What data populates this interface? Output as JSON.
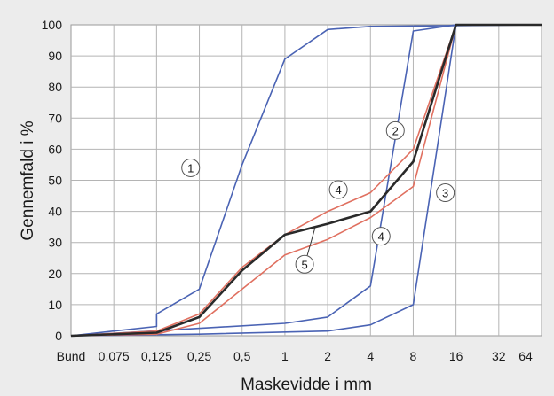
{
  "chart_data": {
    "type": "line",
    "title": "",
    "xlabel": "Maskevidde i mm",
    "ylabel": "Gennemfald i %",
    "x_scale": "categorical-log",
    "categories": [
      "Bund",
      "0,075",
      "0,125",
      "0,25",
      "0,5",
      "1",
      "2",
      "4",
      "8",
      "16",
      "32",
      "64"
    ],
    "y_ticks": [
      0,
      10,
      20,
      30,
      40,
      50,
      60,
      70,
      80,
      90,
      100
    ],
    "ylim": [
      0,
      100
    ],
    "grid": true,
    "series": [
      {
        "name": "1",
        "color": "#4a63b4",
        "points": [
          [
            "Bund",
            0
          ],
          [
            "0,075",
            1.5
          ],
          [
            "0,125",
            3
          ],
          [
            "0,125",
            7
          ],
          [
            "0,25",
            15
          ],
          [
            "0,5",
            55
          ],
          [
            "1",
            89
          ],
          [
            "2",
            98.5
          ],
          [
            "4",
            99.5
          ],
          [
            "64",
            100
          ]
        ]
      },
      {
        "name": "2",
        "color": "#4a63b4",
        "points": [
          [
            "Bund",
            0
          ],
          [
            "1",
            4
          ],
          [
            "2",
            6
          ],
          [
            "4",
            16
          ],
          [
            "8",
            98
          ],
          [
            "16",
            100
          ],
          [
            "64",
            100
          ]
        ]
      },
      {
        "name": "3",
        "color": "#4a63b4",
        "points": [
          [
            "Bund",
            0
          ],
          [
            "0,25",
            0.5
          ],
          [
            "2",
            1.5
          ],
          [
            "4",
            3.5
          ],
          [
            "8",
            10
          ],
          [
            "16",
            100
          ],
          [
            "64",
            100
          ]
        ]
      },
      {
        "name": "4",
        "color": "#e07060",
        "points": [
          [
            "Bund",
            0
          ],
          [
            "0,125",
            1.5
          ],
          [
            "0,25",
            7
          ],
          [
            "0,5",
            22
          ],
          [
            "1",
            32.5
          ],
          [
            "2",
            40
          ],
          [
            "4",
            46
          ],
          [
            "8",
            60
          ],
          [
            "16",
            100
          ],
          [
            "64",
            100
          ]
        ]
      },
      {
        "name": "4",
        "color": "#e07060",
        "points": [
          [
            "Bund",
            0
          ],
          [
            "0,125",
            0.5
          ],
          [
            "0,25",
            4
          ],
          [
            "0,5",
            15
          ],
          [
            "1",
            26
          ],
          [
            "2",
            31
          ],
          [
            "4",
            38
          ],
          [
            "8",
            48
          ],
          [
            "16",
            100
          ],
          [
            "64",
            100
          ]
        ]
      },
      {
        "name": "5",
        "color": "#2a2a2a",
        "points": [
          [
            "Bund",
            0
          ],
          [
            "0,125",
            1
          ],
          [
            "0,25",
            6
          ],
          [
            "0,5",
            21
          ],
          [
            "1",
            32.5
          ],
          [
            "2",
            36
          ],
          [
            "4",
            40
          ],
          [
            "8",
            56
          ],
          [
            "16",
            100
          ],
          [
            "64",
            100
          ]
        ]
      }
    ],
    "annotations": [
      {
        "label": "1",
        "at": [
          "0,5",
          54
        ]
      },
      {
        "label": "2",
        "at": [
          "4",
          66
        ]
      },
      {
        "label": "3",
        "at": [
          "16",
          46
        ]
      },
      {
        "label": "4",
        "at": [
          "2",
          47
        ]
      },
      {
        "label": "4",
        "at": [
          "4",
          32
        ]
      },
      {
        "label": "5",
        "at": [
          "2",
          23
        ]
      }
    ]
  }
}
